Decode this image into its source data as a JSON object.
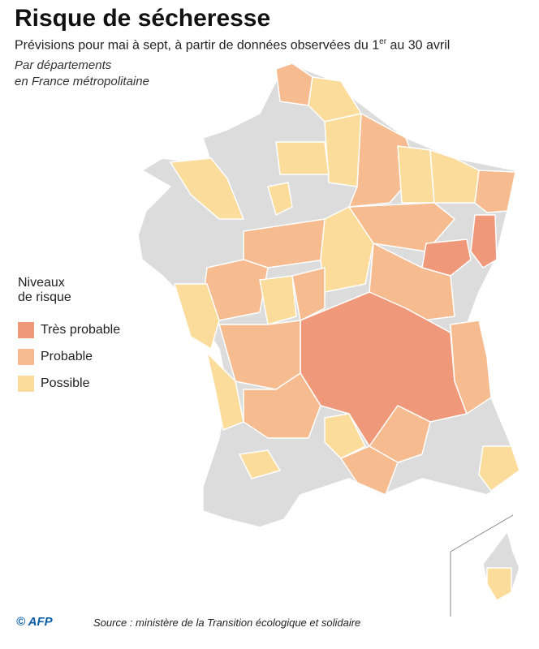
{
  "header": {
    "title": "Risque de sécheresse",
    "subtitle": [
      "Prévisions pour mai à sept, à partir de données observées du 1",
      "er",
      " au 30 avril"
    ],
    "notes": [
      "Par départements",
      "en France métropolitaine"
    ]
  },
  "legend": {
    "title": [
      "Niveaux",
      "de risque"
    ],
    "items": [
      {
        "label": "Très probable",
        "color": "#f0987a"
      },
      {
        "label": "Probable",
        "color": "#f6bb8f"
      },
      {
        "label": "Possible",
        "color": "#fbdc9a"
      }
    ]
  },
  "map": {
    "base_color": "#dcdcdc"
  },
  "footer": {
    "credit": "© AFP",
    "source": "Source : ministère de la Transition écologique et solidaire"
  }
}
